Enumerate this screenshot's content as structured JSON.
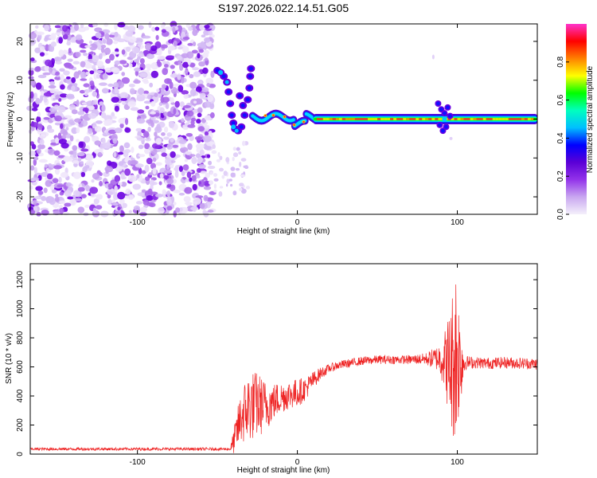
{
  "title": "S197.2026.022.14.51.G05",
  "chart_data": [
    {
      "type": "heatmap",
      "name": "spectrogram",
      "xlabel": "Height of straight line (km)",
      "ylabel": "Frequency (Hz)",
      "xlim": [
        -167,
        150
      ],
      "ylim": [
        -24.5,
        24.5
      ],
      "xticks": [
        -100,
        0,
        100
      ],
      "xtick_labels": [
        "-100",
        "0",
        "100"
      ],
      "yticks": [
        -20,
        -10,
        0,
        10,
        20
      ],
      "ytick_labels": [
        "-20",
        "-10",
        "0",
        "10",
        "20"
      ],
      "colorbar": {
        "label": "Normalized spectral amplitude",
        "range": [
          0,
          1
        ],
        "ticks": [
          0.0,
          0.2,
          0.4,
          0.6,
          0.8
        ],
        "tick_labels": [
          "0.0",
          "0.2",
          "0.4",
          "0.6",
          "0.8"
        ],
        "colormap": [
          "#f4f0fb",
          "#c9a7f0",
          "#9333ea",
          "#5b00d6",
          "#0000ff",
          "#00bfff",
          "#00ffbf",
          "#00ff00",
          "#ffff00",
          "#ff8000",
          "#ff0000",
          "#ff33cc"
        ]
      },
      "features": [
        {
          "description": "noise",
          "x_range": [
            -167,
            -53
          ],
          "freq_range": [
            -24.5,
            24.5
          ],
          "amplitude": 0.1
        },
        {
          "description": "tone",
          "x_range": [
            10,
            150
          ],
          "freq_hz": 0,
          "amplitude": 0.9
        }
      ]
    },
    {
      "type": "line",
      "name": "snr",
      "xlabel": "Height of straight line (km)",
      "ylabel": "SNR (10 * v/v)",
      "xlim": [
        -167,
        150
      ],
      "ylim": [
        0,
        1310
      ],
      "xticks": [
        -100,
        0,
        100
      ],
      "xtick_labels": [
        "-100",
        "0",
        "100"
      ],
      "yticks": [
        0,
        200,
        400,
        600,
        800,
        1000,
        1200
      ],
      "ytick_labels": [
        "0",
        "200",
        "400",
        "600",
        "800",
        "1000",
        "1200"
      ],
      "line_color": "#ee2222",
      "envelope": {
        "x": [
          -167,
          -42,
          -40,
          -35,
          -30,
          -25,
          -20,
          -15,
          -10,
          -5,
          0,
          5,
          10,
          15,
          20,
          25,
          30,
          40,
          50,
          60,
          70,
          80,
          88,
          92,
          96,
          99,
          102,
          105,
          110,
          120,
          130,
          140,
          150
        ],
        "y": [
          35,
          35,
          80,
          260,
          330,
          340,
          330,
          360,
          390,
          410,
          420,
          450,
          510,
          560,
          590,
          610,
          620,
          640,
          650,
          650,
          650,
          655,
          660,
          650,
          600,
          700,
          640,
          630,
          630,
          625,
          630,
          625,
          620
        ],
        "noise_amplitude": [
          10,
          10,
          80,
          200,
          250,
          230,
          180,
          130,
          110,
          100,
          100,
          80,
          60,
          40,
          30,
          30,
          30,
          30,
          30,
          30,
          30,
          40,
          90,
          200,
          450,
          650,
          300,
          50,
          40,
          40,
          40,
          40,
          40
        ]
      }
    }
  ]
}
